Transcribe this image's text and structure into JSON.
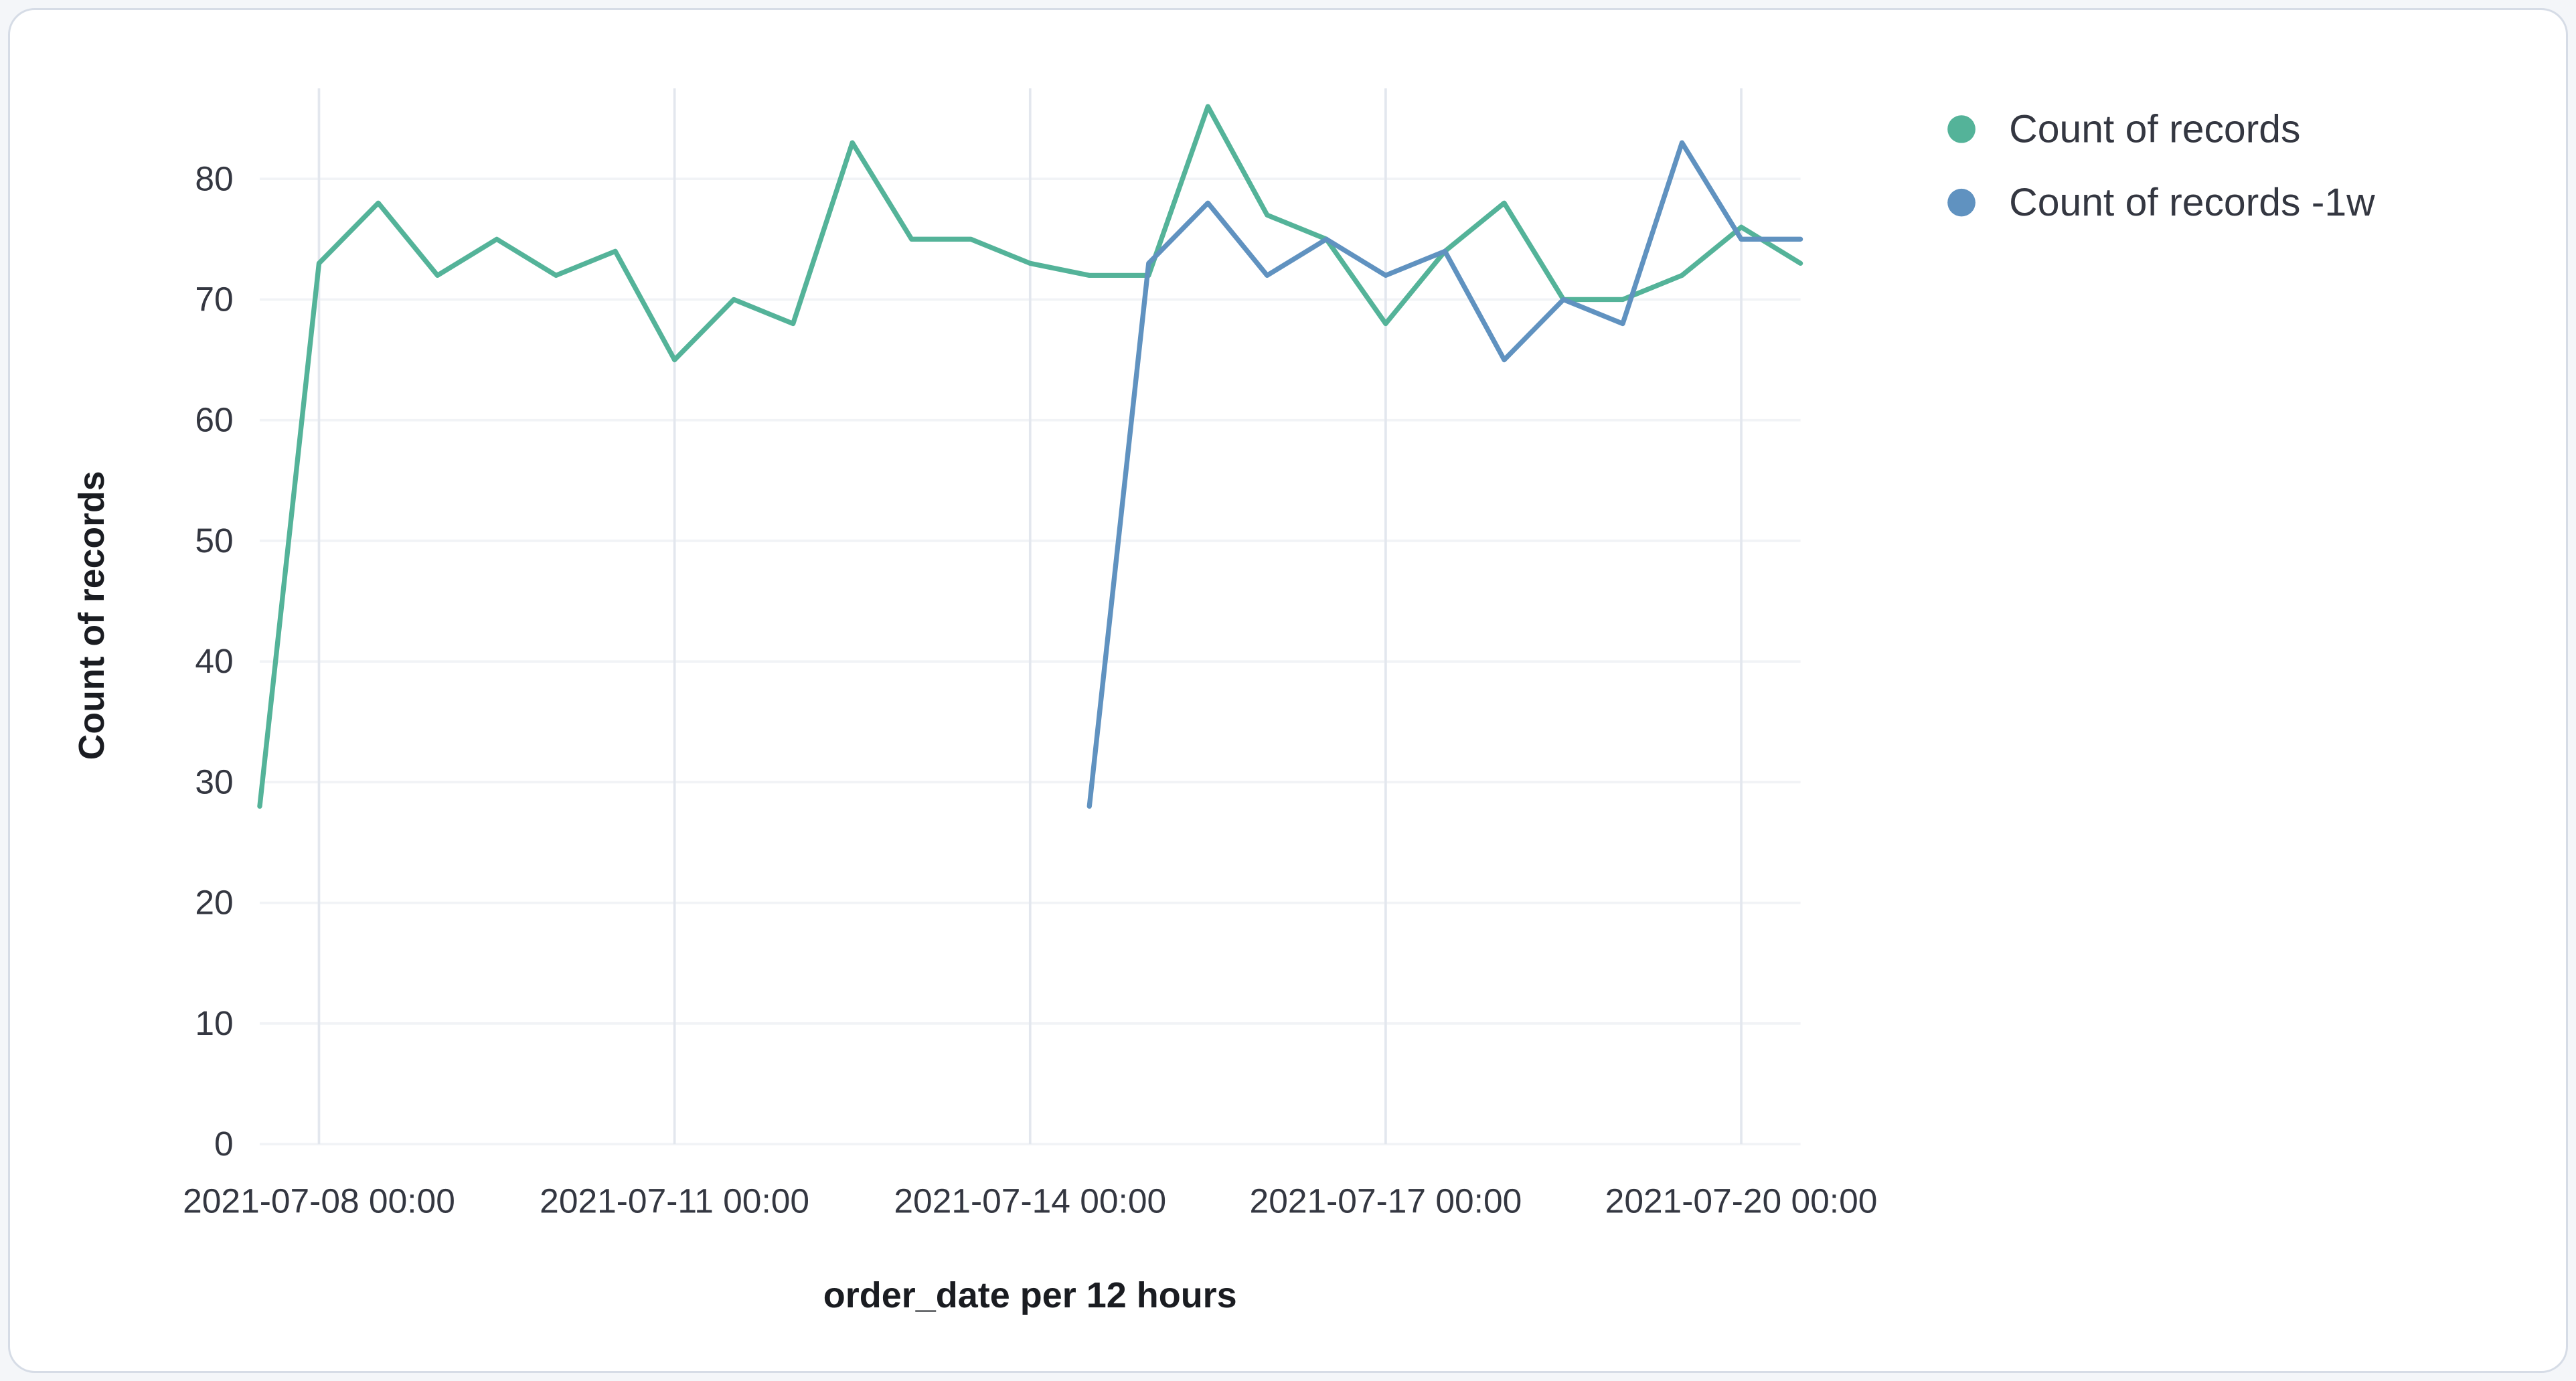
{
  "chart_data": {
    "type": "line",
    "title": "",
    "xlabel": "order_date per 12 hours",
    "ylabel": "Count of records",
    "grid": true,
    "legend_position": "top-right",
    "ylim": [
      0,
      87.5
    ],
    "y_ticks": [
      0,
      10,
      20,
      30,
      40,
      50,
      60,
      70,
      80
    ],
    "x": [
      "2021-07-07 12:00",
      "2021-07-08 00:00",
      "2021-07-08 12:00",
      "2021-07-09 00:00",
      "2021-07-09 12:00",
      "2021-07-10 00:00",
      "2021-07-10 12:00",
      "2021-07-11 00:00",
      "2021-07-11 12:00",
      "2021-07-12 00:00",
      "2021-07-12 12:00",
      "2021-07-13 00:00",
      "2021-07-13 12:00",
      "2021-07-14 00:00",
      "2021-07-14 12:00",
      "2021-07-15 00:00",
      "2021-07-15 12:00",
      "2021-07-16 00:00",
      "2021-07-16 12:00",
      "2021-07-17 00:00",
      "2021-07-17 12:00",
      "2021-07-18 00:00",
      "2021-07-18 12:00",
      "2021-07-19 00:00",
      "2021-07-19 12:00",
      "2021-07-20 00:00",
      "2021-07-20 12:00"
    ],
    "x_tick_indices": [
      1,
      7,
      13,
      19,
      25
    ],
    "x_tick_labels": [
      "2021-07-08 00:00",
      "2021-07-11 00:00",
      "2021-07-14 00:00",
      "2021-07-17 00:00",
      "2021-07-20 00:00"
    ],
    "series": [
      {
        "name": "Count of records",
        "color": "#54b399",
        "values": [
          28,
          73,
          78,
          72,
          75,
          72,
          74,
          65,
          70,
          68,
          83,
          75,
          75,
          73,
          72,
          72,
          86,
          77,
          75,
          68,
          74,
          78,
          70,
          70,
          72,
          76,
          73
        ]
      },
      {
        "name": "Count of records -1w",
        "color": "#6092c0",
        "values": [
          null,
          null,
          null,
          null,
          null,
          null,
          null,
          null,
          null,
          null,
          null,
          null,
          null,
          null,
          28,
          73,
          78,
          72,
          75,
          72,
          74,
          65,
          70,
          68,
          83,
          75,
          75
        ]
      }
    ]
  }
}
